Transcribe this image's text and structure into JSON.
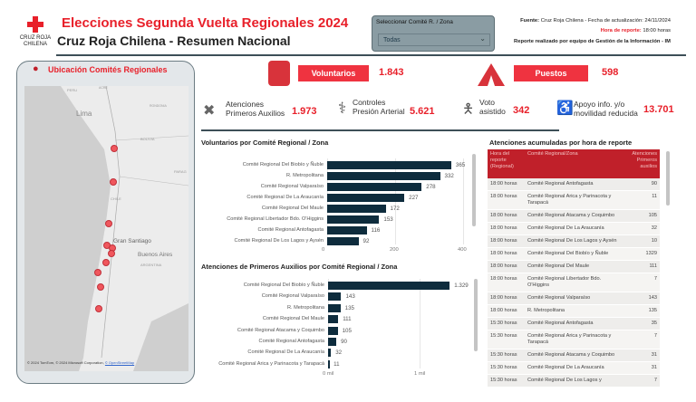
{
  "header": {
    "logo_text": "CRUZ ROJA CHILENA",
    "title": "Elecciones Segunda Vuelta Regionales 2024",
    "subtitle": "Cruz Roja Chilena - Resumen Nacional"
  },
  "slicer": {
    "label": "Seleccionar Comité R. / Zona",
    "value": "Todas"
  },
  "info": {
    "fuente_label": "Fuente:",
    "fuente_text": "Cruz Roja Chilena - Fecha de actualización: 24/11/2024",
    "hora_label": "Hora de reporte:",
    "hora_value": "18:00 horas",
    "credit": "Reporte realizado por equipo de Gestión de la Información - IM"
  },
  "map": {
    "title": "Ubicación Comités Regionales",
    "labels": {
      "peru": "PERU",
      "acre": "ACRE",
      "lima": "Lima",
      "rondonia": "RONDONIA",
      "bolivia": "BOLIVIA",
      "parag": "PARAG",
      "chile": "CHILE",
      "santiago": "Gran Santiago",
      "buenos_aires": "Buenos Aires",
      "argentina": "ARGENTINA"
    },
    "attribution": "© 2024 TomTom, © 2024 Microsoft Corporation,",
    "osm": "© OpenStreetMap",
    "marker_color": "#f0575d"
  },
  "kpis": {
    "voluntarios": {
      "label": "Voluntarios",
      "value": "1.843",
      "icon": "vest-icon"
    },
    "puestos": {
      "label": "Puestos",
      "value": "598",
      "icon": "tent-icon"
    },
    "atenciones": {
      "label1": "Atenciones",
      "label2": "Primeros Auxilios",
      "value": "1.973"
    },
    "controles": {
      "label1": "Controles",
      "label2": "Presión Arterial",
      "value": "5.621"
    },
    "voto": {
      "label1": "Voto",
      "label2": "asistido",
      "value": "342"
    },
    "apoyo": {
      "label1": "Apoyo info. y/o",
      "label2": "movilidad reducida",
      "value": "13.701"
    }
  },
  "chart_data": [
    {
      "type": "bar",
      "orientation": "horizontal",
      "title": "Voluntarios por Comité Regional / Zona",
      "categories": [
        "Comité Regional Del Biobío y Ñuble",
        "R. Metropolitana",
        "Comité Regional Valparaíso",
        "Comité Regional De La Araucanía",
        "Comité Regional Del Maule",
        "Comité Regional Libertador Bdo. O'Higgins",
        "Comité Regional Antofagasta",
        "Comité Regional De Los Lagos y Aysén"
      ],
      "values": [
        365,
        332,
        278,
        227,
        172,
        153,
        116,
        92
      ],
      "value_labels": [
        "365",
        "332",
        "278",
        "227",
        "172",
        "153",
        "116",
        "92"
      ],
      "xlim": [
        0,
        400
      ],
      "ticks": [
        "0",
        "200",
        "400"
      ],
      "tick_values": [
        0,
        200,
        400
      ],
      "color": "#0e2c3d"
    },
    {
      "type": "bar",
      "orientation": "horizontal",
      "title": "Atenciones de Primeros Auxilios por Comité Regional / Zona",
      "categories": [
        "Comité Regional Del Biobío y Ñuble",
        "Comité Regional Valparaíso",
        "R. Metropolitana",
        "Comité Regional Del Maule",
        "Comité Regional Atacama y Coquimbo",
        "Comité Regional Antofagasta",
        "Comité Regional De La Araucanía",
        "Comité Regional Arica y Parinacota y Tarapacá"
      ],
      "values": [
        1329,
        143,
        135,
        111,
        105,
        90,
        32,
        11
      ],
      "value_labels": [
        "1.329",
        "143",
        "135",
        "111",
        "105",
        "90",
        "32",
        "11"
      ],
      "xlim": [
        0,
        1330
      ],
      "ticks": [
        "0 mil",
        "1 mil"
      ],
      "tick_values": [
        0,
        1000
      ],
      "color": "#0e2c3d"
    }
  ],
  "table": {
    "title": "Atenciones acumuladas por hora de reporte",
    "columns": [
      "Hora del reporte (Regional)",
      "Comité Regional/Zona",
      "Atenciones Primeros auxilios"
    ],
    "rows": [
      [
        "18:00 horas",
        "Comité Regional Antofagasta",
        "90"
      ],
      [
        "18:00 horas",
        "Comité Regional Arica y Parinacota y Tarapacá",
        "11"
      ],
      [
        "18:00 horas",
        "Comité Regional Atacama y Coquimbo",
        "105"
      ],
      [
        "18:00 horas",
        "Comité Regional De La Araucanía",
        "32"
      ],
      [
        "18:00 horas",
        "Comité Regional De Los Lagos y Aysén",
        "10"
      ],
      [
        "18:00 horas",
        "Comité Regional Del Biobío y Ñuble",
        "1329"
      ],
      [
        "18:00 horas",
        "Comité Regional Del Maule",
        "111"
      ],
      [
        "18:00 horas",
        "Comité Regional Libertador Bdo. O'Higgins",
        "7"
      ],
      [
        "18:00 horas",
        "Comité Regional Valparaíso",
        "143"
      ],
      [
        "18:00 horas",
        "R. Metropolitana",
        "135"
      ],
      [
        "15:30 horas",
        "Comité Regional Antofagasta",
        "35"
      ],
      [
        "15:30 horas",
        "Comité Regional Arica y Parinacota y Tarapacá",
        "7"
      ],
      [
        "15:30 horas",
        "Comité Regional Atacama y Coquimbo",
        "31"
      ],
      [
        "15:30 horas",
        "Comité Regional De La Araucanía",
        "31"
      ],
      [
        "15:30 horas",
        "Comité Regional De Los Lagos y",
        "7"
      ]
    ]
  }
}
